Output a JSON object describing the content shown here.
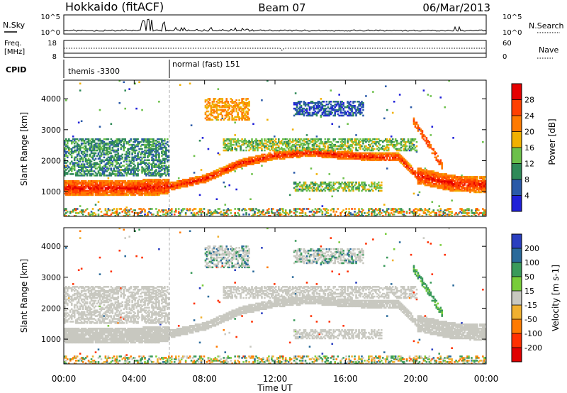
{
  "header": {
    "station": "Hokkaido (fitACF)",
    "beam": "Beam 07",
    "date": "06/Mar/2013"
  },
  "noise_panel": {
    "left_label": "N.Sky",
    "right_label": "N.Search",
    "left_ticks": [
      "10^5",
      "10^0"
    ],
    "right_ticks": [
      "10^5",
      "10^0"
    ]
  },
  "freq_panel": {
    "left_label_1": "Freq.",
    "left_label_2": "[MHz]",
    "right_label": "Nave",
    "left_ticks": [
      "18",
      "8"
    ],
    "right_ticks": [
      "60",
      "0"
    ]
  },
  "cpid": {
    "label": "CPID",
    "segments": [
      {
        "label": "themis -3300",
        "start_hour": 0,
        "end_hour": 6
      },
      {
        "label": "normal (fast) 151",
        "start_hour": 6,
        "end_hour": 24
      }
    ]
  },
  "power_panel": {
    "ylabel": "Slant Range [km]",
    "yticks": [
      1000,
      2000,
      3000,
      4000
    ],
    "ylim": [
      200,
      4600
    ],
    "colorbar_label": "Power [dB]",
    "colorbar_ticks": [
      4,
      8,
      12,
      16,
      20,
      24,
      28
    ],
    "colors": [
      "#2020d8",
      "#2a5aa8",
      "#2f8a58",
      "#6cc04a",
      "#f0b000",
      "#ff7a00",
      "#ff4000",
      "#e60000"
    ]
  },
  "velocity_panel": {
    "ylabel": "Slant Range [km]",
    "yticks": [
      1000,
      2000,
      3000,
      4000
    ],
    "ylim": [
      200,
      4600
    ],
    "colorbar_label": "Velocity [m s-1]",
    "colorbar_ticks": [
      200,
      100,
      50,
      15,
      -15,
      -50,
      -100,
      -200
    ],
    "colors": [
      "#2a3fc0",
      "#2a6a9a",
      "#3a9a5a",
      "#78cc3a",
      "#c8c8c0",
      "#f0b030",
      "#ff7a00",
      "#ff3000",
      "#e00000"
    ]
  },
  "xaxis": {
    "label": "Time UT",
    "ticks": [
      "00:00",
      "04:00",
      "08:00",
      "12:00",
      "16:00",
      "20:00",
      "00:00"
    ]
  },
  "chart_data": {
    "type": "heatmap",
    "title": "Hokkaido (fitACF) Beam 07 06/Mar/2013",
    "xlabel": "Time UT",
    "ylabel": "Slant Range [km]",
    "xlim_hours": [
      0,
      24
    ],
    "ylim": [
      200,
      4600
    ],
    "power_scale_db": [
      0,
      32
    ],
    "velocity_scale_ms": [
      -250,
      250
    ],
    "main_echo_band_center_km": [
      {
        "hour": 0,
        "range": 1100
      },
      {
        "hour": 4,
        "range": 1100
      },
      {
        "hour": 6,
        "range": 1150
      },
      {
        "hour": 8,
        "range": 1400
      },
      {
        "hour": 10,
        "range": 1900
      },
      {
        "hour": 12,
        "range": 2150
      },
      {
        "hour": 14,
        "range": 2250
      },
      {
        "hour": 16,
        "range": 2150
      },
      {
        "hour": 18,
        "range": 2100
      },
      {
        "hour": 19,
        "range": 2100
      },
      {
        "hour": 20,
        "range": 1500
      },
      {
        "hour": 22,
        "range": 1250
      },
      {
        "hour": 24,
        "range": 1200
      }
    ],
    "features": [
      {
        "name": "upper echo band",
        "start_hour": 0,
        "end_hour": 6,
        "range_min": 1500,
        "range_max": 2700,
        "power_db": 10
      },
      {
        "name": "upper echo band",
        "start_hour": 9,
        "end_hour": 20,
        "range_min": 2300,
        "range_max": 2700,
        "power_db": 14
      },
      {
        "name": "patch",
        "start_hour": 8,
        "end_hour": 10.5,
        "range_min": 3300,
        "range_max": 4000,
        "power_db": 20
      },
      {
        "name": "patch",
        "start_hour": 13,
        "end_hour": 17,
        "range_min": 3400,
        "range_max": 3900,
        "power_db": 6
      },
      {
        "name": "lower streak",
        "start_hour": 13,
        "end_hour": 18,
        "range_min": 1000,
        "range_max": 1300,
        "power_db": 14
      }
    ]
  }
}
